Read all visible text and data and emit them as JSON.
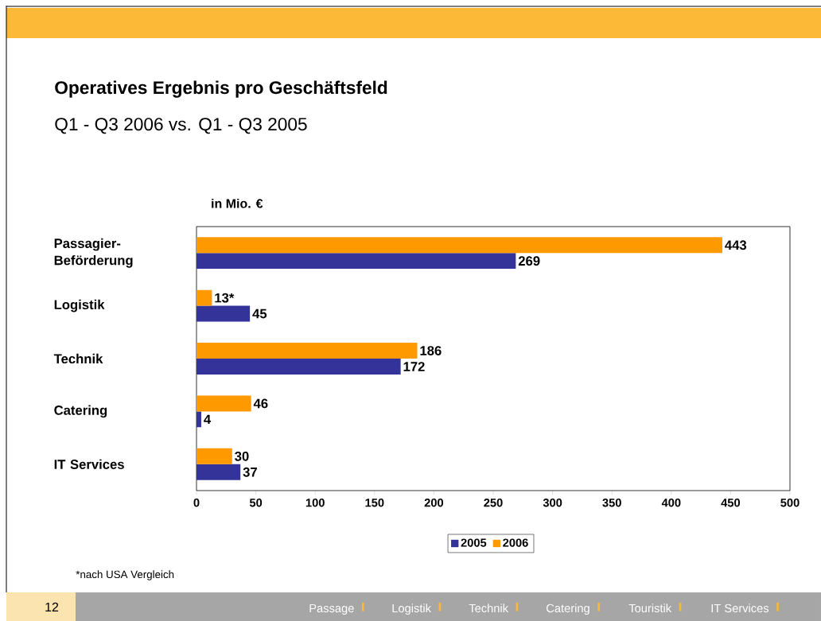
{
  "chart_data": {
    "type": "bar",
    "orientation": "horizontal",
    "title": "Operatives Ergebnis pro Geschäftsfeld",
    "subtitle": "Q1 - Q3 2006 vs. Q1 - Q3 2005",
    "xlabel": "in  Mio. €",
    "categories": [
      "Passagier-Beförderung",
      "Logistik",
      "Technik",
      "Catering",
      "IT Services"
    ],
    "series": [
      {
        "name": "2005",
        "color": "#333399",
        "values": [
          269,
          45,
          172,
          4,
          37
        ],
        "value_labels": [
          "269",
          "45",
          "172",
          "4",
          "37"
        ]
      },
      {
        "name": "2006",
        "color": "#ff9900",
        "values": [
          443,
          13,
          186,
          46,
          30
        ],
        "value_labels": [
          "443",
          "13*",
          "186",
          "46",
          "30"
        ]
      }
    ],
    "xlim": [
      0,
      500
    ],
    "xticks": [
      0,
      50,
      100,
      150,
      200,
      250,
      300,
      350,
      400,
      450,
      500
    ],
    "legend": "bottom",
    "grid": false,
    "annotations": [
      "*nach USA Vergleich",
      "12",
      "Passage",
      "Logistik",
      "Technik",
      "Catering",
      "Touristik",
      "IT Services"
    ]
  }
}
